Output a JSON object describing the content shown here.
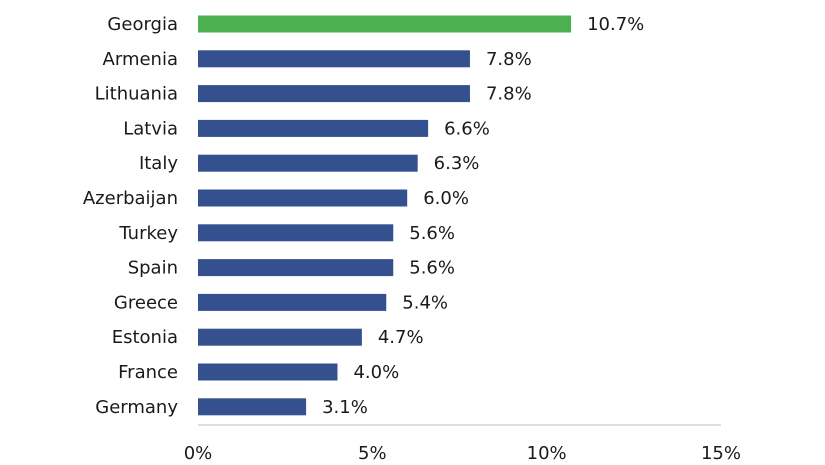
{
  "chart_data": {
    "type": "bar",
    "orientation": "horizontal",
    "categories": [
      "Georgia",
      "Armenia",
      "Lithuania",
      "Latvia",
      "Italy",
      "Azerbaijan",
      "Turkey",
      "Spain",
      "Greece",
      "Estonia",
      "France",
      "Germany"
    ],
    "values": [
      10.7,
      7.8,
      7.8,
      6.6,
      6.3,
      6.0,
      5.6,
      5.6,
      5.4,
      4.7,
      4.0,
      3.1
    ],
    "value_labels": [
      "10.7%",
      "7.8%",
      "7.8%",
      "6.6%",
      "6.3%",
      "6.0%",
      "5.6%",
      "5.6%",
      "5.4%",
      "4.7%",
      "4.0%",
      "3.1%"
    ],
    "xlim": [
      0,
      15
    ],
    "xticks": [
      0,
      5,
      10,
      15
    ],
    "xtick_labels": [
      "0%",
      "5%",
      "10%",
      "15%"
    ],
    "grid": false,
    "legend": "none",
    "colors": {
      "default_bar": "#34508f",
      "highlight_bar": "#4caf50",
      "highlight_category": "Georgia"
    }
  }
}
